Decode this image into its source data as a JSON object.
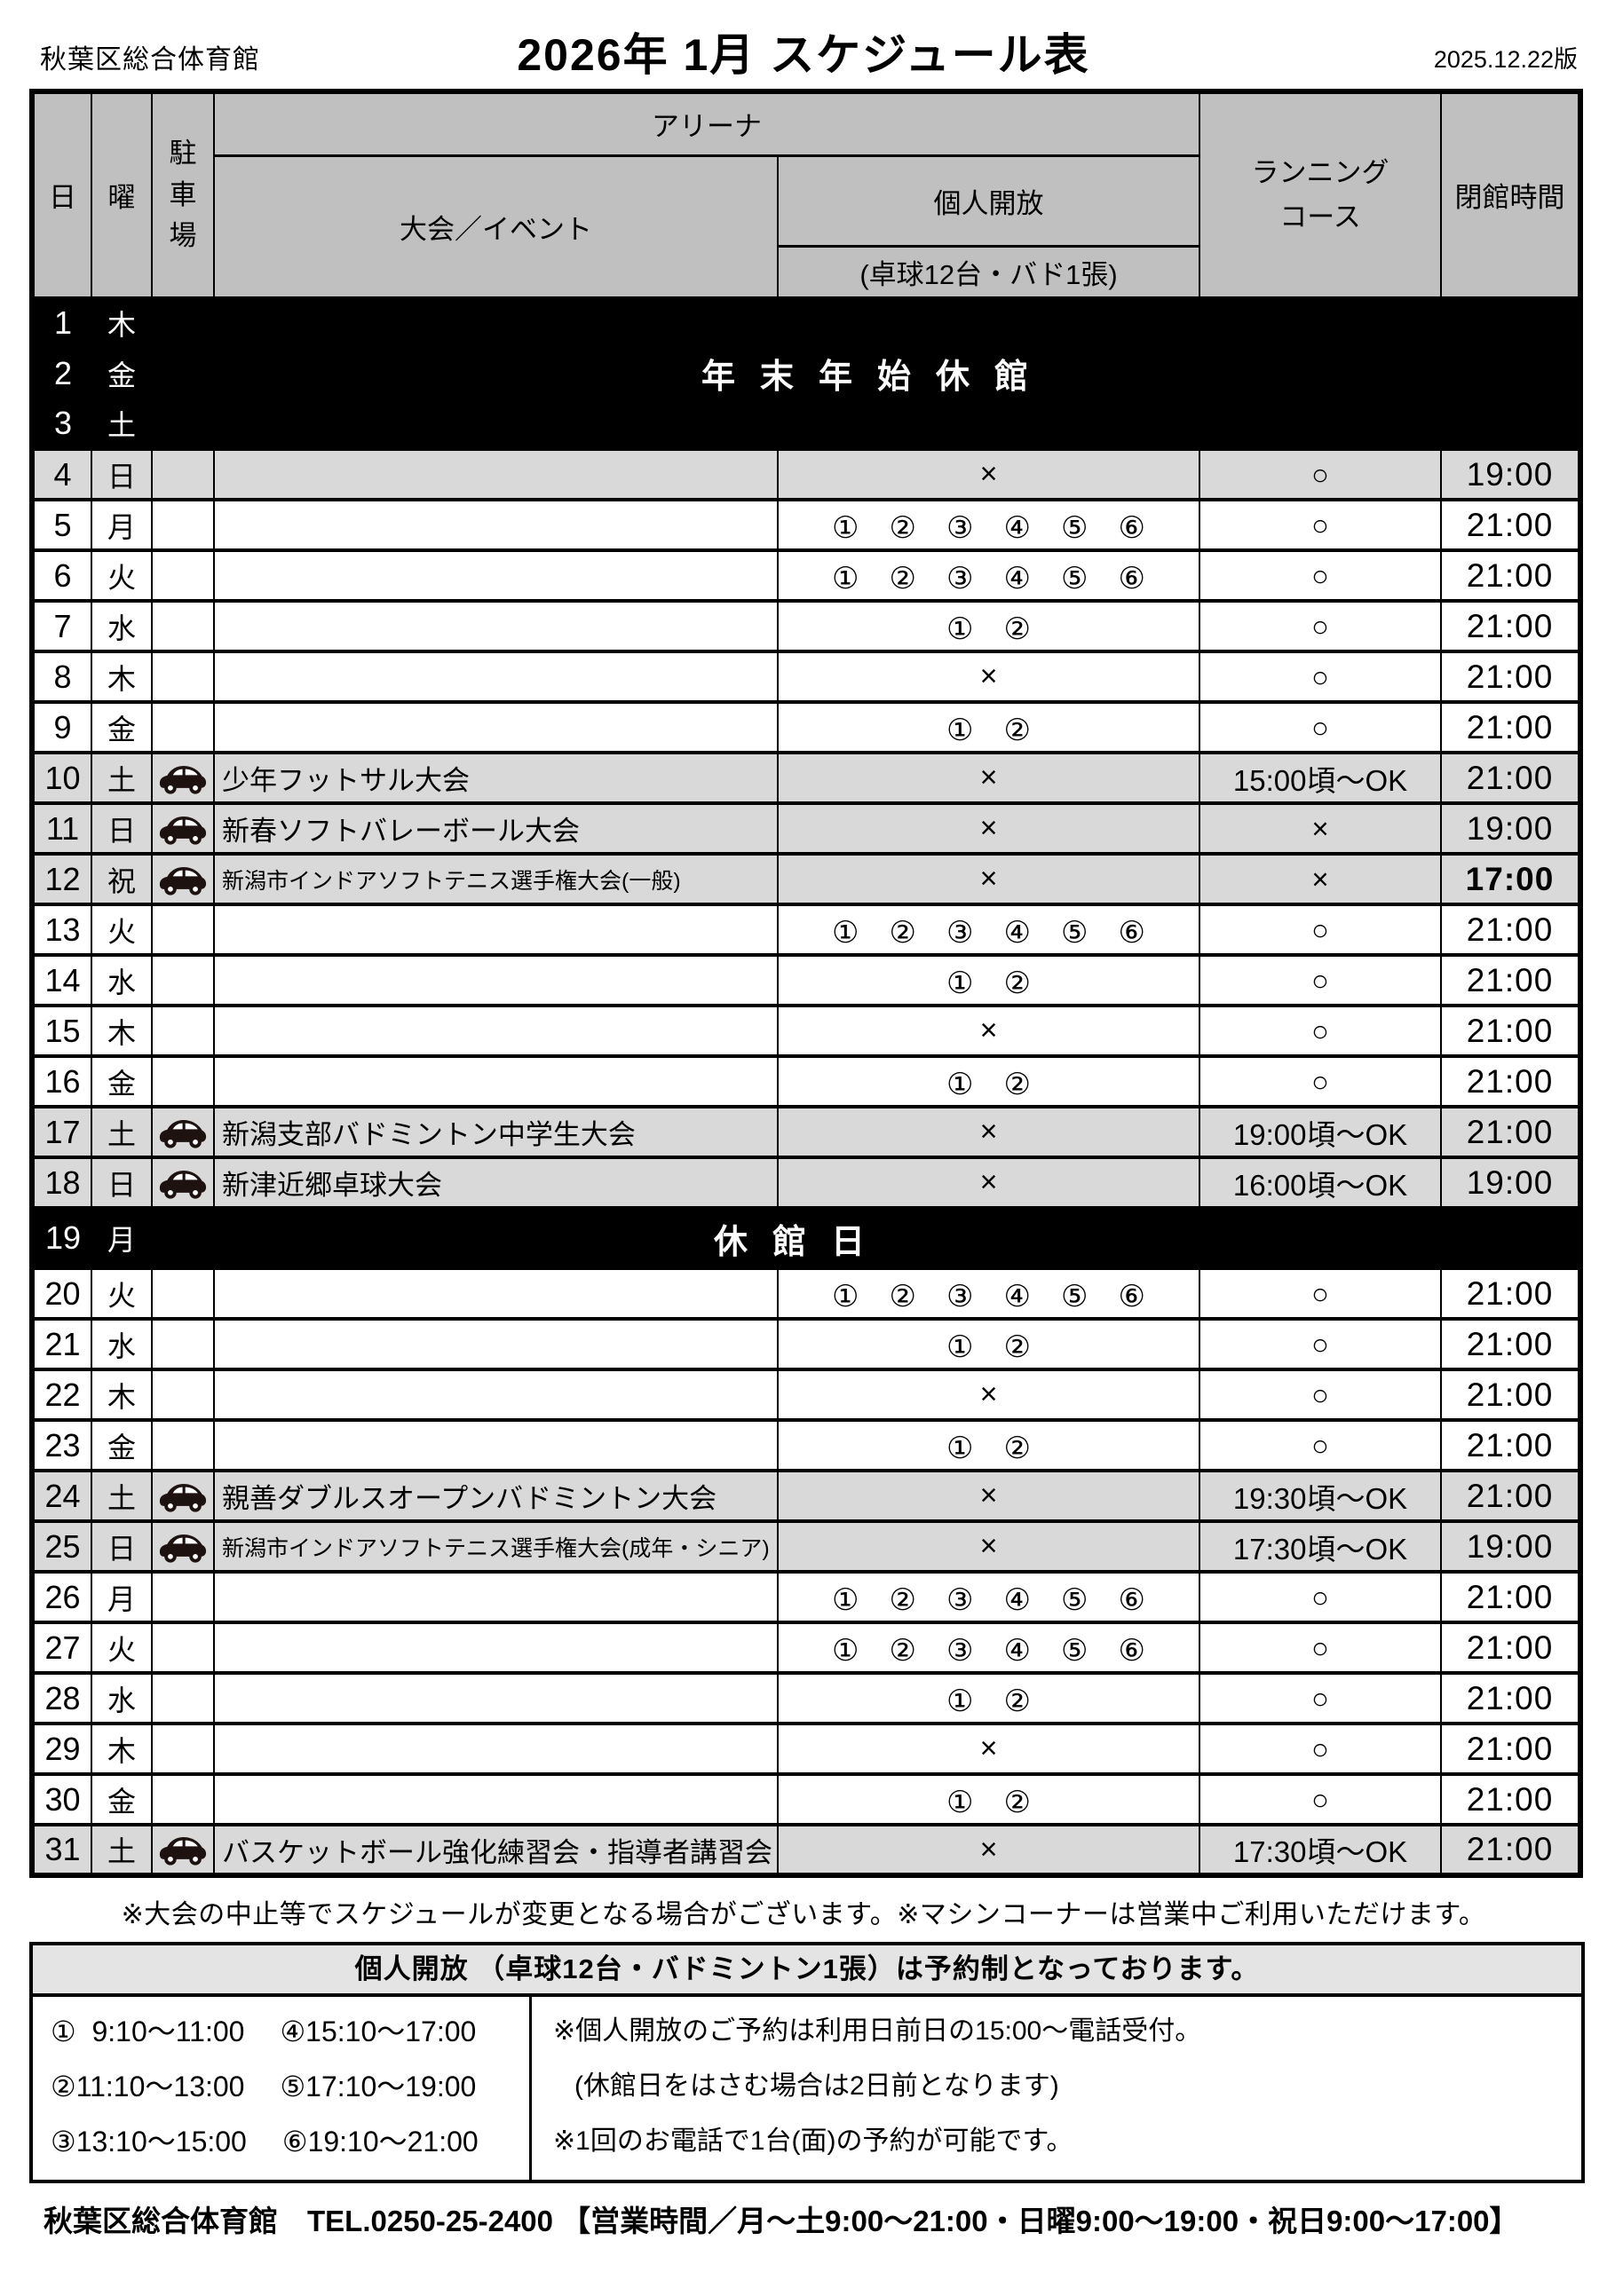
{
  "page": {
    "facility": "秋葉区総合体育館",
    "title": "2026年 1月 スケジュール表",
    "version": "2025.12.22版"
  },
  "colors": {
    "header_bg": "#c0c0c0",
    "weekend_bg": "#d9d9d9",
    "band_bg": "#000000",
    "band_text": "#ffffff",
    "box_title_bg": "#e4e4e4",
    "car_icon": "#1e1210"
  },
  "icons": {
    "parking": "car-icon"
  },
  "table": {
    "headers": {
      "day": "日",
      "weekday": "曜",
      "parking": "駐車場",
      "arena": "アリーナ",
      "event": "大会／イベント",
      "open": "個人開放",
      "open_note": "(卓球12台・バド1張)",
      "running_line1": "ランニング",
      "running_line2": "コース",
      "closing": "閉館時間"
    },
    "notices": {
      "newyear": "年末年始休館",
      "closed": "休館日"
    },
    "rows": [
      {
        "day": "1",
        "wd": "木",
        "band": "newyear"
      },
      {
        "day": "2",
        "wd": "金",
        "band": "newyear"
      },
      {
        "day": "3",
        "wd": "土",
        "band": "newyear"
      },
      {
        "day": "4",
        "wd": "日",
        "shade": true,
        "park": false,
        "event": "",
        "open": "×",
        "run": "○",
        "close": "19:00"
      },
      {
        "day": "5",
        "wd": "月",
        "event": "",
        "open": "①　②　③　④　⑤　⑥",
        "run": "○",
        "close": "21:00"
      },
      {
        "day": "6",
        "wd": "火",
        "event": "",
        "open": "①　②　③　④　⑤　⑥",
        "run": "○",
        "close": "21:00"
      },
      {
        "day": "7",
        "wd": "水",
        "event": "",
        "open": "①　②",
        "run": "○",
        "close": "21:00"
      },
      {
        "day": "8",
        "wd": "木",
        "event": "",
        "open": "×",
        "run": "○",
        "close": "21:00"
      },
      {
        "day": "9",
        "wd": "金",
        "event": "",
        "open": "①　②",
        "run": "○",
        "close": "21:00"
      },
      {
        "day": "10",
        "wd": "土",
        "shade": true,
        "park": true,
        "event": "少年フットサル大会",
        "open": "×",
        "run": "15:00頃～OK",
        "close": "21:00"
      },
      {
        "day": "11",
        "wd": "日",
        "shade": true,
        "park": true,
        "event": "新春ソフトバレーボール大会",
        "open": "×",
        "run": "×",
        "close": "19:00"
      },
      {
        "day": "12",
        "wd": "祝",
        "shade": true,
        "park": true,
        "event": "新潟市インドアソフトテニス選手権大会(一般)",
        "small": true,
        "open": "×",
        "run": "×",
        "close": "17:00",
        "bold_close": true
      },
      {
        "day": "13",
        "wd": "火",
        "event": "",
        "open": "①　②　③　④　⑤　⑥",
        "run": "○",
        "close": "21:00"
      },
      {
        "day": "14",
        "wd": "水",
        "event": "",
        "open": "①　②",
        "run": "○",
        "close": "21:00"
      },
      {
        "day": "15",
        "wd": "木",
        "event": "",
        "open": "×",
        "run": "○",
        "close": "21:00"
      },
      {
        "day": "16",
        "wd": "金",
        "event": "",
        "open": "①　②",
        "run": "○",
        "close": "21:00"
      },
      {
        "day": "17",
        "wd": "土",
        "shade": true,
        "park": true,
        "event": "新潟支部バドミントン中学生大会",
        "open": "×",
        "run": "19:00頃～OK",
        "close": "21:00"
      },
      {
        "day": "18",
        "wd": "日",
        "shade": true,
        "park": true,
        "event": "新津近郷卓球大会",
        "open": "×",
        "run": "16:00頃～OK",
        "close": "19:00"
      },
      {
        "day": "19",
        "wd": "月",
        "band": "closed"
      },
      {
        "day": "20",
        "wd": "火",
        "event": "",
        "open": "①　②　③　④　⑤　⑥",
        "run": "○",
        "close": "21:00"
      },
      {
        "day": "21",
        "wd": "水",
        "event": "",
        "open": "①　②",
        "run": "○",
        "close": "21:00"
      },
      {
        "day": "22",
        "wd": "木",
        "event": "",
        "open": "×",
        "run": "○",
        "close": "21:00"
      },
      {
        "day": "23",
        "wd": "金",
        "event": "",
        "open": "①　②",
        "run": "○",
        "close": "21:00"
      },
      {
        "day": "24",
        "wd": "土",
        "shade": true,
        "park": true,
        "event": "親善ダブルスオープンバドミントン大会",
        "open": "×",
        "run": "19:30頃～OK",
        "close": "21:00"
      },
      {
        "day": "25",
        "wd": "日",
        "shade": true,
        "park": true,
        "event": "新潟市インドアソフトテニス選手権大会(成年・シニア)",
        "small": true,
        "open": "×",
        "run": "17:30頃～OK",
        "close": "19:00"
      },
      {
        "day": "26",
        "wd": "月",
        "event": "",
        "open": "①　②　③　④　⑤　⑥",
        "run": "○",
        "close": "21:00"
      },
      {
        "day": "27",
        "wd": "火",
        "event": "",
        "open": "①　②　③　④　⑤　⑥",
        "run": "○",
        "close": "21:00"
      },
      {
        "day": "28",
        "wd": "水",
        "event": "",
        "open": "①　②",
        "run": "○",
        "close": "21:00"
      },
      {
        "day": "29",
        "wd": "木",
        "event": "",
        "open": "×",
        "run": "○",
        "close": "21:00"
      },
      {
        "day": "30",
        "wd": "金",
        "event": "",
        "open": "①　②",
        "run": "○",
        "close": "21:00"
      },
      {
        "day": "31",
        "wd": "土",
        "shade": true,
        "park": true,
        "event": "バスケットボール強化練習会・指導者講習会",
        "open": "×",
        "run": "17:30頃～OK",
        "close": "21:00"
      }
    ]
  },
  "footnote": "※大会の中止等でスケジュールが変更となる場合がございます。※マシンコーナーは営業中ご利用いただけます。",
  "reservation": {
    "title": "個人開放 （卓球12台・バドミントン1張）は予約制となっております。",
    "slot_rows": [
      [
        "①  9:10～11:00",
        "④15:10～17:00"
      ],
      [
        "②11:10～13:00",
        "⑤17:10～19:00"
      ],
      [
        "③13:10～15:00",
        "⑥19:10～21:00"
      ]
    ],
    "notes": [
      {
        "text": "※個人開放のご予約は利用日前日の15:00～電話受付。",
        "indent": false
      },
      {
        "text": "(休館日をはさむ場合は2日前となります)",
        "indent": true
      },
      {
        "text": "※1回のお電話で1台(面)の予約が可能です。",
        "indent": false
      }
    ]
  },
  "footer": "秋葉区総合体育館　TEL.0250-25-2400 【営業時間／月～土9:00～21:00・日曜9:00～19:00・祝日9:00～17:00】"
}
